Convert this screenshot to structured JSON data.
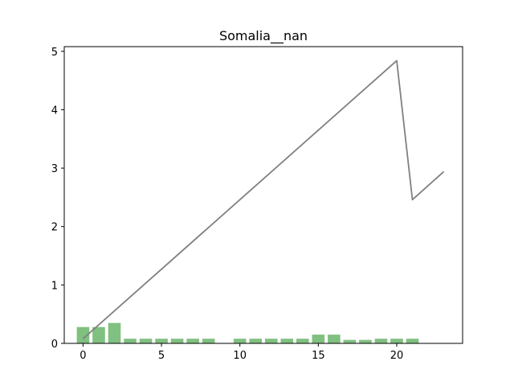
{
  "chart_data": {
    "type": "bar",
    "title": "Somalia__nan",
    "xlabel": "",
    "ylabel": "",
    "xlim": [
      -1.2,
      24.2
    ],
    "ylim": [
      0,
      5.08
    ],
    "x_ticks": [
      0,
      5,
      10,
      15,
      20
    ],
    "y_ticks": [
      0,
      1,
      2,
      3,
      4,
      5
    ],
    "grid": false,
    "legend": "none",
    "series": [
      {
        "type": "bar",
        "color": "#80c080",
        "x": [
          0,
          1,
          2,
          3,
          4,
          5,
          6,
          7,
          8,
          10,
          11,
          12,
          13,
          14,
          15,
          16,
          17,
          18,
          19,
          20,
          21
        ],
        "values": [
          0.28,
          0.28,
          0.35,
          0.08,
          0.08,
          0.08,
          0.08,
          0.08,
          0.08,
          0.08,
          0.08,
          0.08,
          0.08,
          0.08,
          0.15,
          0.15,
          0.06,
          0.06,
          0.08,
          0.08,
          0.08
        ]
      },
      {
        "type": "line",
        "color": "#808080",
        "x": [
          0,
          20,
          21,
          23
        ],
        "values": [
          0.08,
          4.84,
          2.46,
          2.94
        ]
      }
    ]
  }
}
